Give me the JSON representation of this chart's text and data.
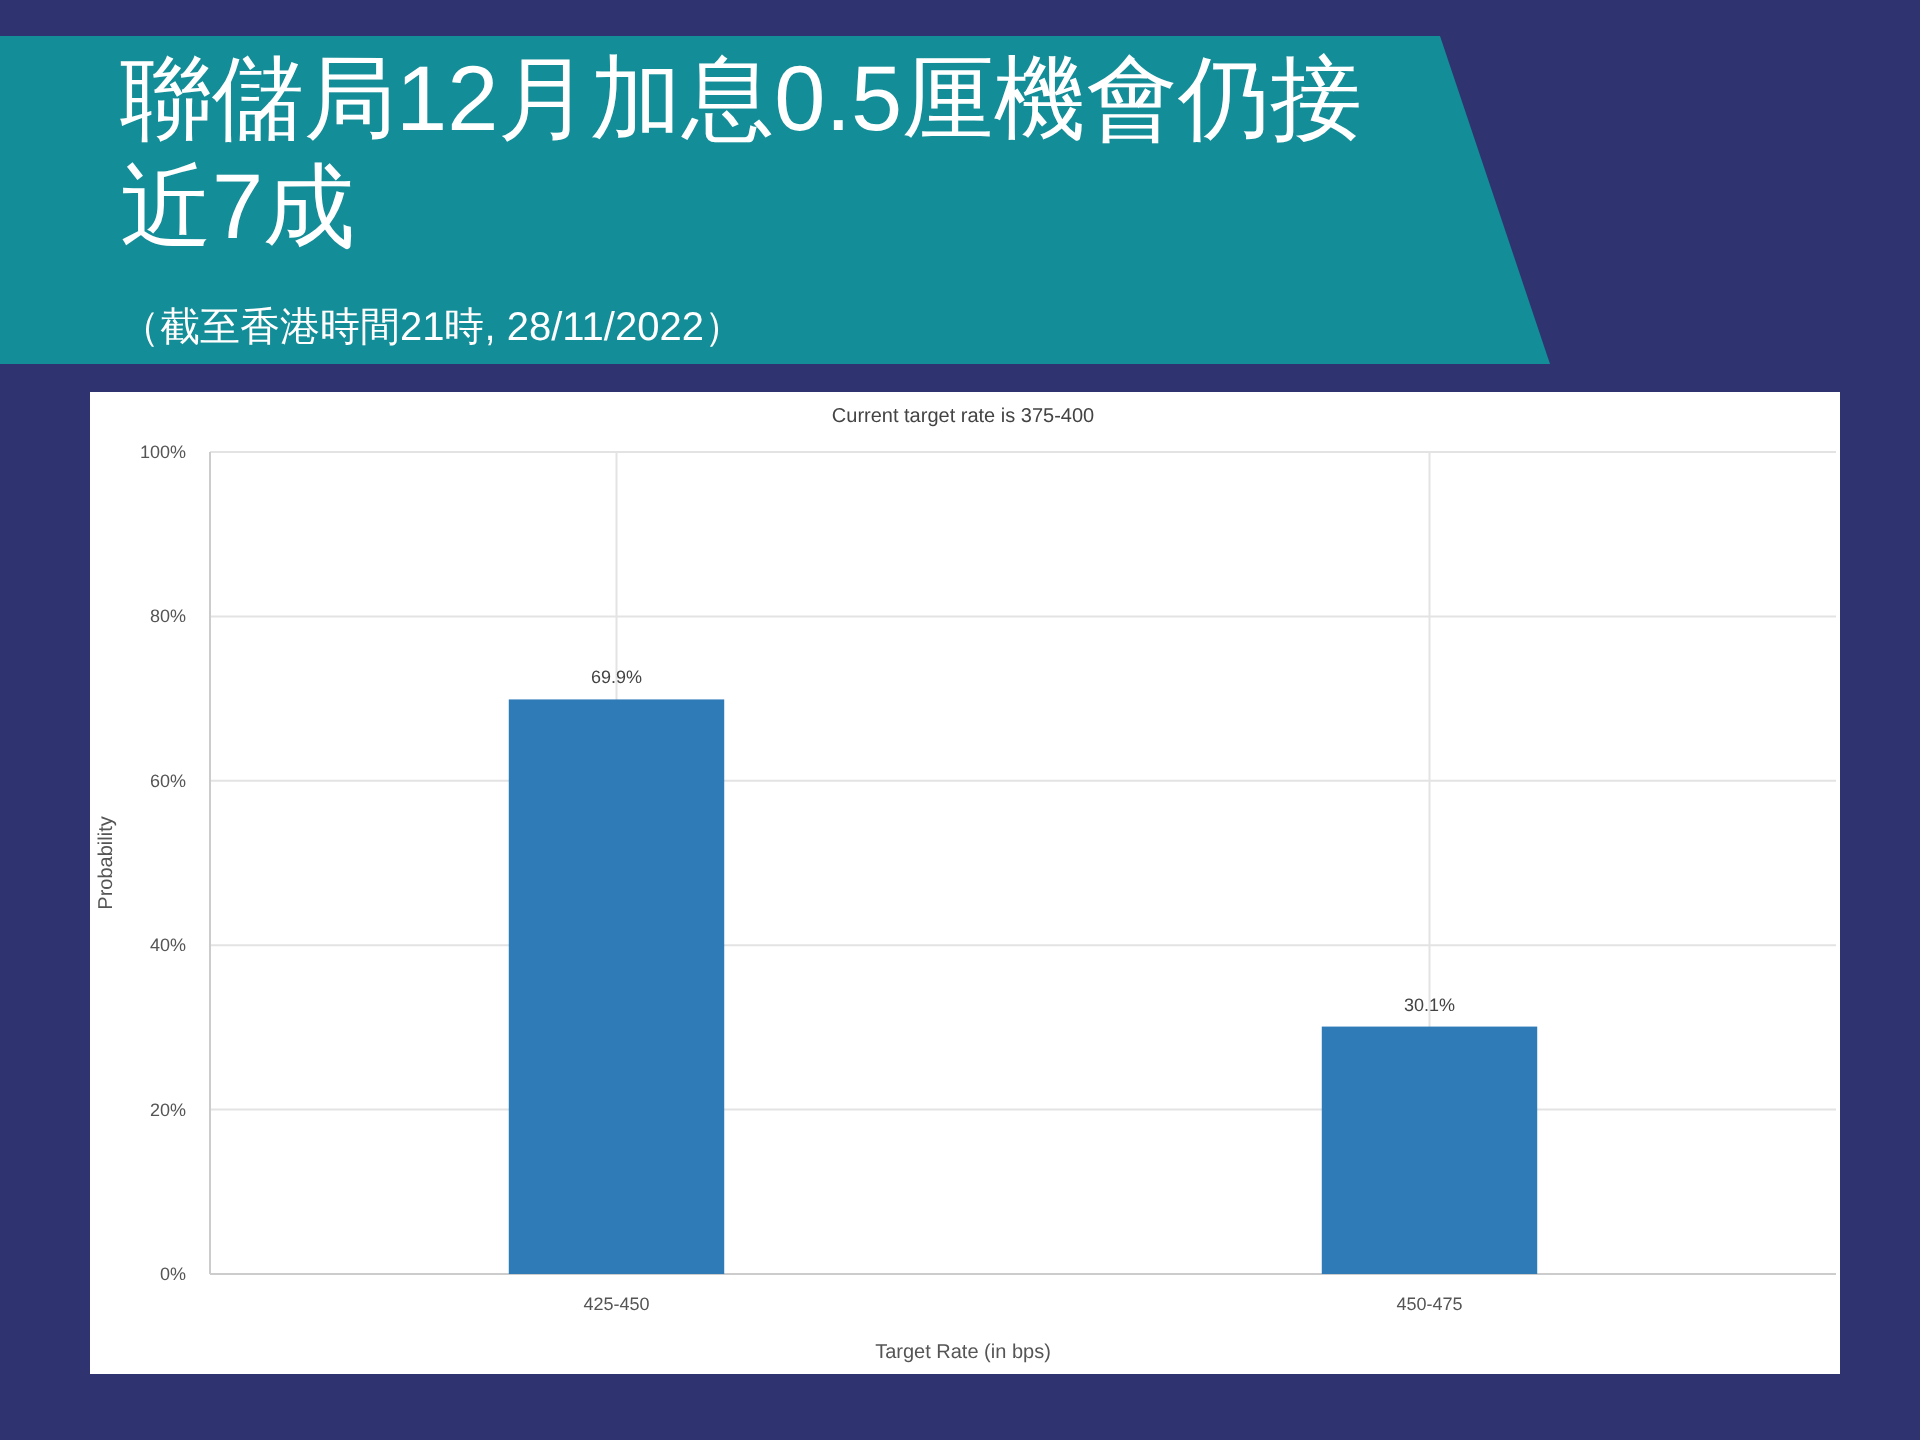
{
  "chart_data": {
    "type": "bar",
    "title": "聯儲局12月加息0.5厘機會仍接近7成",
    "subtitle": "Current target rate is 375-400",
    "annotations": [
      "（截至香港時間21時, 28/11/2022）"
    ],
    "xlabel": "Target Rate (in bps)",
    "ylabel": "Probability",
    "categories": [
      "425-450",
      "450-475"
    ],
    "values": [
      69.9,
      30.1
    ],
    "value_labels": [
      "69.9%",
      "30.1%"
    ],
    "color": "#2e7bb8",
    "ylim": [
      0,
      100
    ],
    "yticks": [
      {
        "value": 0,
        "label": "0%"
      },
      {
        "value": 20,
        "label": "20%"
      },
      {
        "value": 40,
        "label": "40%"
      },
      {
        "value": 60,
        "label": "60%"
      },
      {
        "value": 80,
        "label": "80%"
      },
      {
        "value": 100,
        "label": "100%"
      }
    ],
    "grid": true
  }
}
